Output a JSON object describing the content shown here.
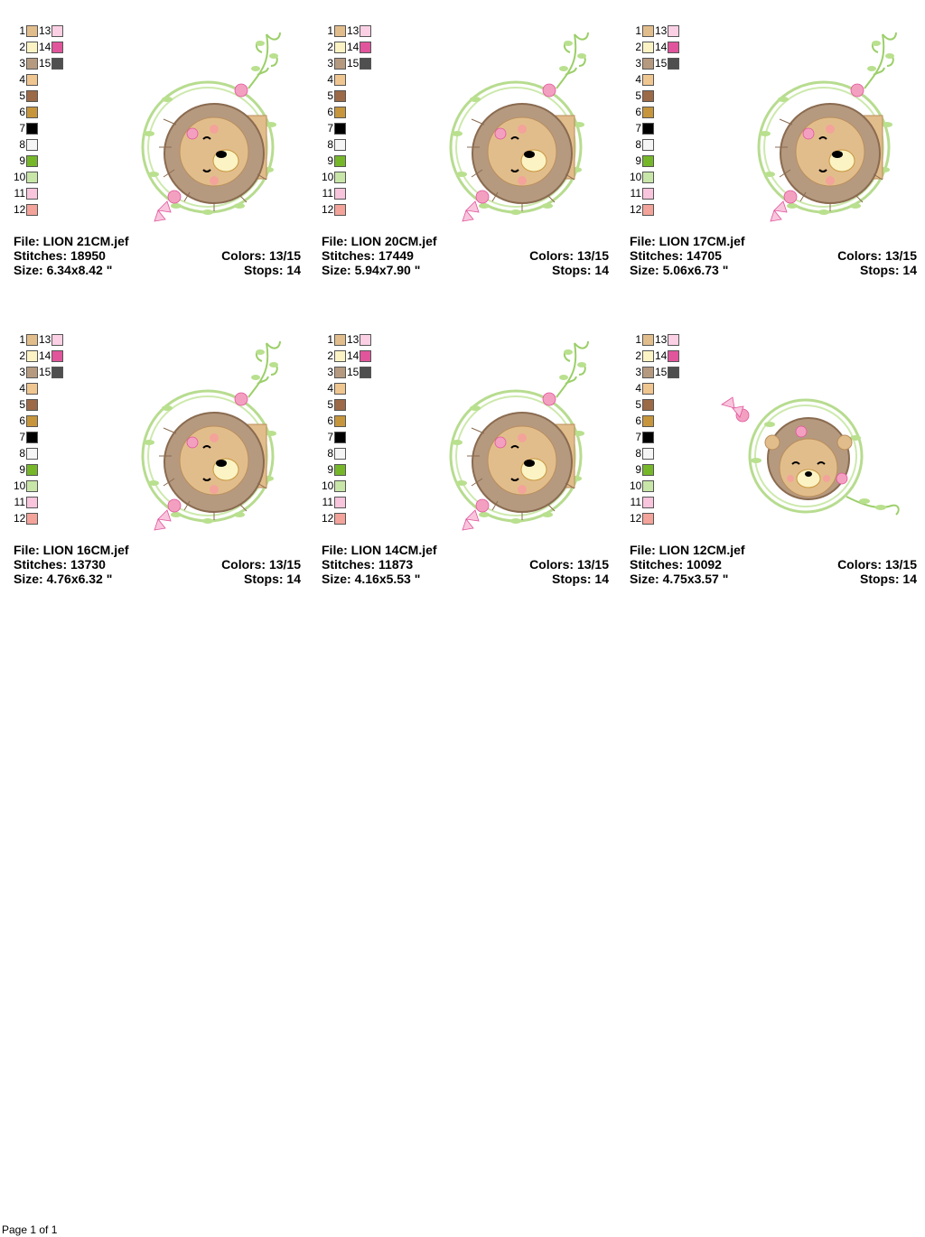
{
  "color_swatches": [
    {
      "num": "1",
      "color": "#e2bd8c"
    },
    {
      "num": "2",
      "color": "#fbf3c4"
    },
    {
      "num": "3",
      "color": "#b59a80"
    },
    {
      "num": "4",
      "color": "#f0c690"
    },
    {
      "num": "5",
      "color": "#9c6a47"
    },
    {
      "num": "6",
      "color": "#c7963c"
    },
    {
      "num": "7",
      "color": "#000000"
    },
    {
      "num": "8",
      "color": "#f5f5f5"
    },
    {
      "num": "9",
      "color": "#76b72a"
    },
    {
      "num": "10",
      "color": "#c8e6a8"
    },
    {
      "num": "11",
      "color": "#f8c5dd"
    },
    {
      "num": "12",
      "color": "#f3a39a"
    },
    {
      "num": "13",
      "color": "#fbd0e4"
    },
    {
      "num": "14",
      "color": "#e1559c"
    },
    {
      "num": "15",
      "color": "#4f4f4f"
    }
  ],
  "designs": [
    {
      "file": "File: LION 21CM.jef",
      "stitches": "Stitches: 18950",
      "size": "Size: 6.34x8.42 \"",
      "colors": "Colors: 13/15",
      "stops": "Stops: 14",
      "variant": "tall"
    },
    {
      "file": "File: LION 20CM.jef",
      "stitches": "Stitches: 17449",
      "size": "Size: 5.94x7.90 \"",
      "colors": "Colors: 13/15",
      "stops": "Stops: 14",
      "variant": "tall"
    },
    {
      "file": "File: LION 17CM.jef",
      "stitches": "Stitches: 14705",
      "size": "Size: 5.06x6.73 \"",
      "colors": "Colors: 13/15",
      "stops": "Stops: 14",
      "variant": "tall"
    },
    {
      "file": "File: LION 16CM.jef",
      "stitches": "Stitches: 13730",
      "size": "Size: 4.76x6.32 \"",
      "colors": "Colors: 13/15",
      "stops": "Stops: 14",
      "variant": "tall"
    },
    {
      "file": "File: LION 14CM.jef",
      "stitches": "Stitches: 11873",
      "size": "Size: 4.16x5.53 \"",
      "colors": "Colors: 13/15",
      "stops": "Stops: 14",
      "variant": "tall"
    },
    {
      "file": "File: LION 12CM.jef",
      "stitches": "Stitches: 10092",
      "size": "Size: 4.75x3.57 \"",
      "colors": "Colors: 13/15",
      "stops": "Stops: 14",
      "variant": "wide"
    }
  ],
  "footer": {
    "page_label": "Page 1 of 1"
  }
}
